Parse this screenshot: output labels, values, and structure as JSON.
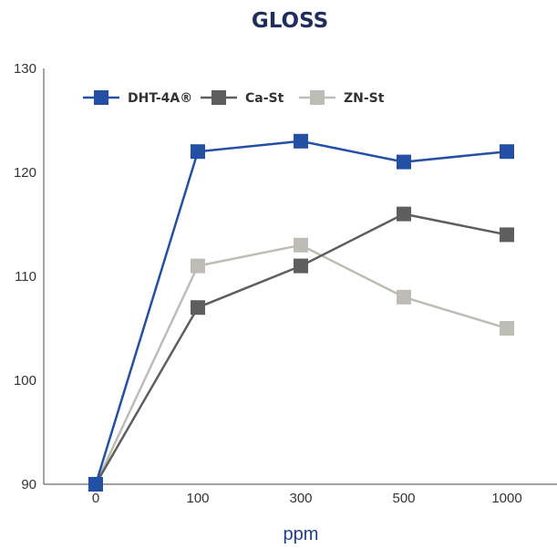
{
  "chart_data": {
    "type": "line",
    "title": "GLOSS",
    "xlabel": "ppm",
    "ylabel": "",
    "categories": [
      "0",
      "100",
      "300",
      "500",
      "1000"
    ],
    "ylim": [
      90,
      130
    ],
    "yticks": [
      90,
      100,
      110,
      120,
      130
    ],
    "grid": false,
    "legend_position": "top-left",
    "series": [
      {
        "name": "DHT-4A®",
        "color": "#2350a4",
        "values": [
          90,
          122,
          123,
          121,
          122
        ]
      },
      {
        "name": "Ca-St",
        "color": "#5e5e5e",
        "values": [
          90,
          107,
          111,
          116,
          114
        ]
      },
      {
        "name": "ZN-St",
        "color": "#bdbdb5",
        "values": [
          90,
          111,
          113,
          108,
          105
        ]
      }
    ]
  }
}
